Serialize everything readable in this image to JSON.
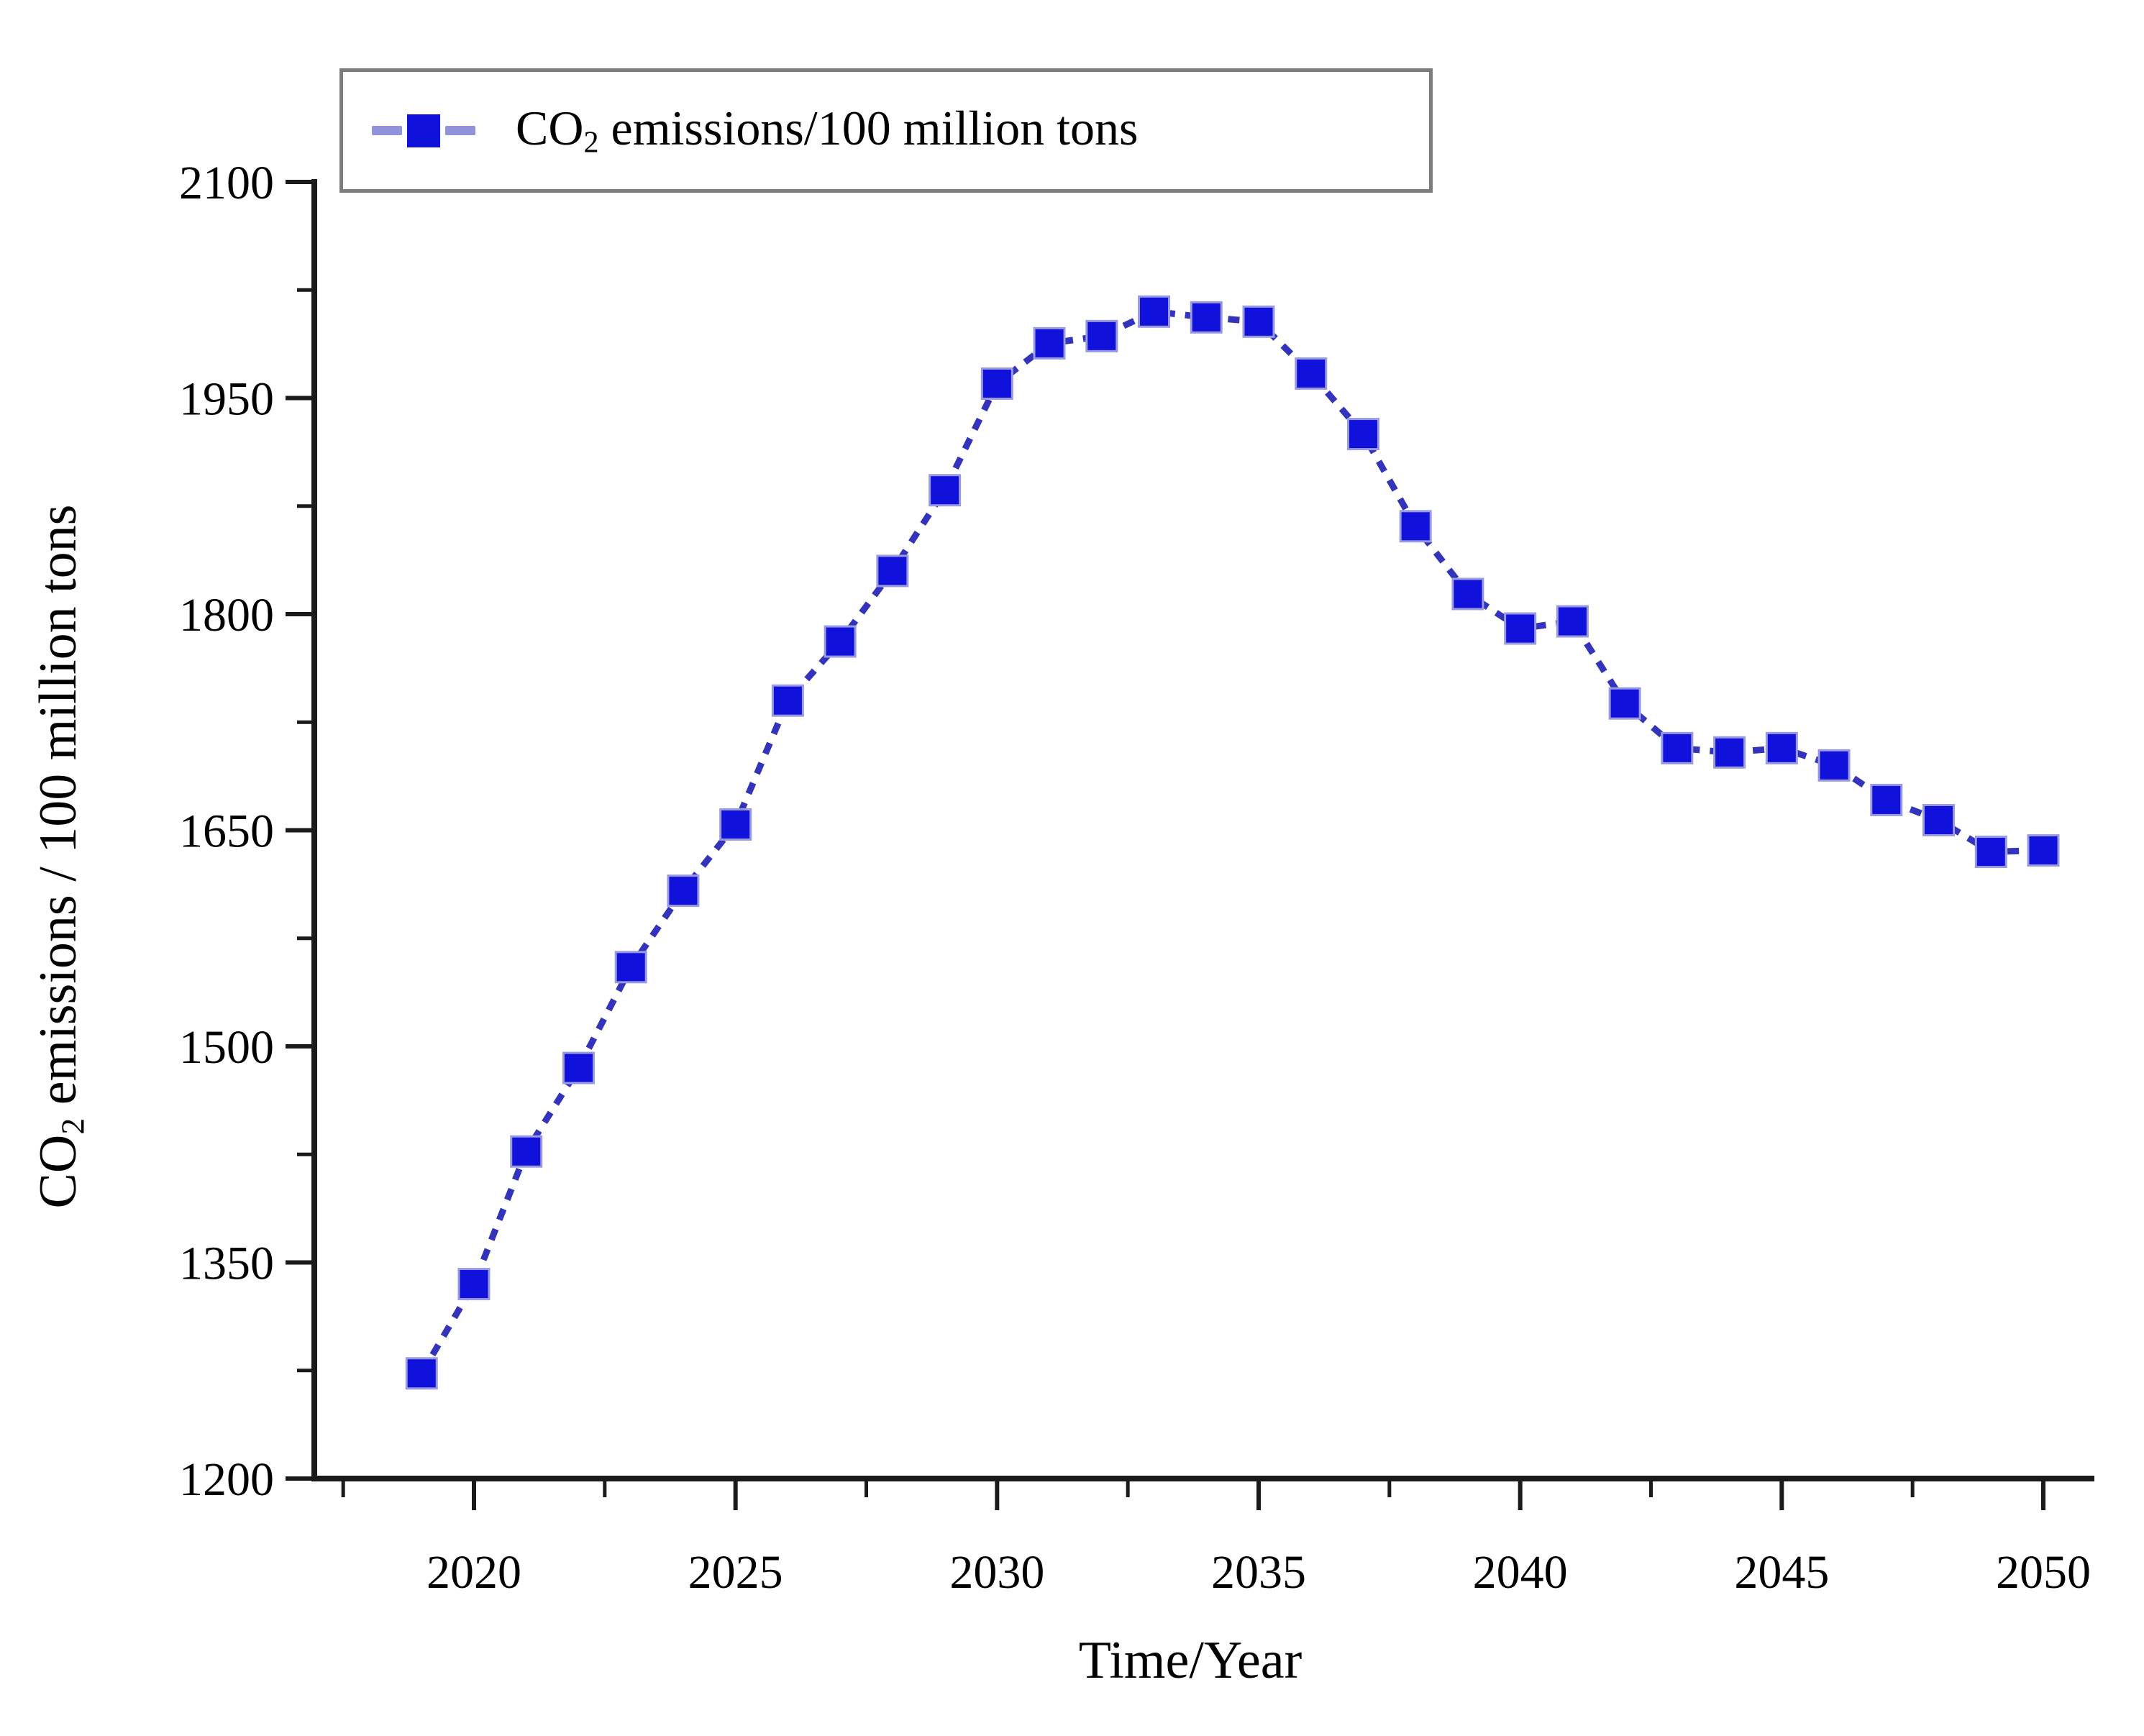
{
  "figure": {
    "background": "#ffffff",
    "x_axis_title": "Time/Year",
    "y_axis_title_prefix": "CO",
    "y_axis_title_sub": "2",
    "y_axis_title_rest": " emissions / 100 million tons",
    "legend": {
      "label_prefix": "CO",
      "label_sub": "2",
      "label_rest": " emissions/100 million tons",
      "border_color": "#7d7d7d",
      "position": "top-left"
    },
    "colors": {
      "line": "#3333bb",
      "marker": "#1012dc",
      "legend_dash": "#9093dc",
      "axis": "#1a1a1a",
      "text": "#000000"
    }
  },
  "chart_data": {
    "type": "line",
    "title": "",
    "xlabel": "Time/Year",
    "ylabel": "CO2 emissions / 100 million tons",
    "legend_entries": [
      "CO2 emissions/100 million tons"
    ],
    "legend_position": "top-left",
    "grid": false,
    "line_style": "dashed",
    "marker": "square",
    "xlim": [
      2017,
      2051
    ],
    "ylim": [
      1200,
      2100
    ],
    "x_ticks": [
      2020,
      2025,
      2030,
      2035,
      2040,
      2045,
      2050
    ],
    "x_minor_ticks": [
      2017.5,
      2022.5,
      2027.5,
      2032.5,
      2037.5,
      2042.5,
      2047.5
    ],
    "y_ticks": [
      2100,
      1950,
      1800,
      1650,
      1500,
      1350,
      1200
    ],
    "y_minor_ticks": [
      2025,
      1875,
      1725,
      1575,
      1425,
      1275
    ],
    "series": [
      {
        "name": "CO2 emissions/100 million tons",
        "x": [
          2019,
          2020,
          2021,
          2022,
          2023,
          2024,
          2025,
          2026,
          2027,
          2028,
          2029,
          2030,
          2031,
          2032,
          2033,
          2034,
          2035,
          2036,
          2037,
          2038,
          2039,
          2040,
          2041,
          2042,
          2043,
          2044,
          2045,
          2046,
          2047,
          2048,
          2049,
          2050
        ],
        "y": [
          1273,
          1335,
          1427,
          1485,
          1555,
          1608,
          1654,
          1740,
          1781,
          1830,
          1886,
          1960,
          1988,
          1993,
          2010,
          2006,
          2003,
          1967,
          1925,
          1861,
          1814,
          1790,
          1795,
          1738,
          1707,
          1704,
          1707,
          1695,
          1671,
          1657,
          1635,
          1636
        ]
      }
    ]
  }
}
